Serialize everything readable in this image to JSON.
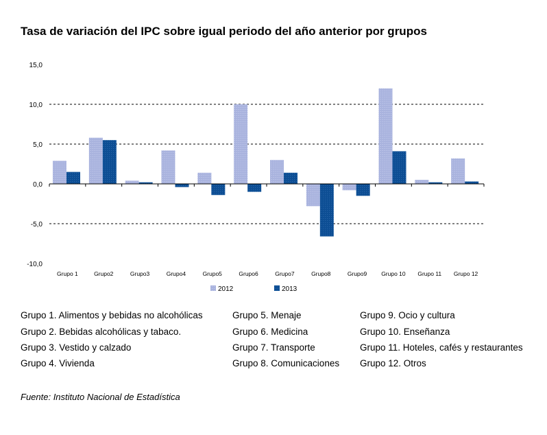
{
  "title": "Tasa de variación del IPC sobre igual periodo del año anterior por grupos",
  "chart_data": {
    "type": "bar",
    "categories": [
      "Grupo 1",
      "Grupo2",
      "Grupo3",
      "Grupo4",
      "Grupo5",
      "Grupo6",
      "Grupo7",
      "Grupo8",
      "Grupo9",
      "Grupo 10",
      "Grupo 11",
      "Grupo 12"
    ],
    "series": [
      {
        "name": "2012",
        "values": [
          2.9,
          5.8,
          0.4,
          4.2,
          1.4,
          10.0,
          3.0,
          -2.8,
          -0.8,
          12.0,
          0.5,
          3.2
        ]
      },
      {
        "name": "2013",
        "values": [
          1.5,
          5.5,
          0.2,
          -0.4,
          -1.4,
          -1.0,
          1.4,
          -6.6,
          -1.5,
          4.1,
          0.2,
          0.3
        ]
      }
    ],
    "y_ticks": [
      "15,0",
      "10,0",
      "5,0",
      "0,0",
      "-5,0",
      "-10,0"
    ],
    "ylim": [
      -10,
      15
    ],
    "grid": "dashed horizontal",
    "legend_position": "bottom",
    "colors": {
      "2012": "#a9b3de",
      "2013": "#0d4e94"
    }
  },
  "group_legend": [
    [
      "Grupo 1. Alimentos y bebidas no alcohólicas",
      "Grupo 2. Bebidas alcohólicas y  tabaco.",
      "Grupo 3. Vestido y calzado",
      "Grupo 4. Vivienda"
    ],
    [
      "Grupo 5. Menaje",
      "Grupo 6. Medicina",
      "Grupo 7. Transporte",
      "Grupo 8. Comunicaciones"
    ],
    [
      "Grupo 9. Ocio y cultura",
      "Grupo 10. Enseñanza",
      "Grupo 11. Hoteles, cafés y restaurantes",
      "Grupo 12. Otros"
    ]
  ],
  "source": "Fuente: Instituto Nacional de Estadística"
}
